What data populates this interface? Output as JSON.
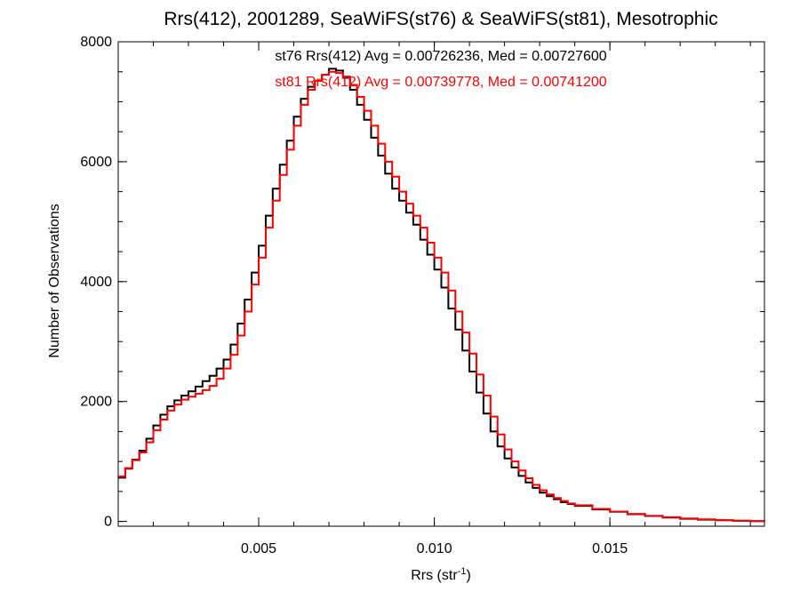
{
  "chart_data": {
    "type": "line",
    "title": "Rrs(412), 2001289, SeaWiFS(st76) & SeaWiFS(st81), Mesotrophic",
    "xlabel": {
      "main": "Rrs (str",
      "sup": "-1",
      "close": ")"
    },
    "ylabel": "Number of Observations",
    "xlim": [
      0.001,
      0.0194
    ],
    "ylim": [
      -80,
      8000
    ],
    "x_ticks": [
      {
        "value": 0.005,
        "label": "0.005"
      },
      {
        "value": 0.01,
        "label": "0.010"
      },
      {
        "value": 0.015,
        "label": "0.015"
      }
    ],
    "x_minor_step": 0.001,
    "y_ticks": [
      {
        "value": 0,
        "label": "0"
      },
      {
        "value": 2000,
        "label": "2000"
      },
      {
        "value": 4000,
        "label": "4000"
      },
      {
        "value": 6000,
        "label": "6000"
      },
      {
        "value": 8000,
        "label": "8000"
      }
    ],
    "y_minor_step": 500,
    "grid": false,
    "step": "histogram",
    "annotations": [
      {
        "text": "st76 Rrs(412) Avg = 0.00726236, Med = 0.00727600",
        "color": "#000000"
      },
      {
        "text": "st81 Rrs(412) Avg = 0.00739778, Med = 0.00741200",
        "color": "#ff0000"
      }
    ],
    "series": [
      {
        "name": "st76",
        "color": "#000000",
        "x": [
          0.001,
          0.0012,
          0.0014,
          0.0016,
          0.0018,
          0.002,
          0.0022,
          0.0024,
          0.0026,
          0.0028,
          0.003,
          0.0032,
          0.0034,
          0.0036,
          0.0038,
          0.004,
          0.0042,
          0.0044,
          0.0046,
          0.0048,
          0.005,
          0.0052,
          0.0054,
          0.0056,
          0.0058,
          0.006,
          0.0062,
          0.0064,
          0.0066,
          0.0068,
          0.007,
          0.0072,
          0.0074,
          0.0076,
          0.0078,
          0.008,
          0.0082,
          0.0084,
          0.0086,
          0.0088,
          0.009,
          0.0092,
          0.0094,
          0.0096,
          0.0098,
          0.01,
          0.0102,
          0.0104,
          0.0106,
          0.0108,
          0.011,
          0.0112,
          0.0114,
          0.0116,
          0.0118,
          0.012,
          0.0122,
          0.0124,
          0.0126,
          0.0128,
          0.013,
          0.0132,
          0.0134,
          0.0136,
          0.0138,
          0.014,
          0.0145,
          0.015,
          0.0155,
          0.016,
          0.0165,
          0.017,
          0.0175,
          0.018,
          0.0185,
          0.019,
          0.0194
        ],
        "y": [
          730,
          880,
          1030,
          1180,
          1380,
          1600,
          1780,
          1920,
          2020,
          2100,
          2170,
          2250,
          2340,
          2430,
          2550,
          2700,
          2950,
          3300,
          3700,
          4150,
          4600,
          5100,
          5550,
          5950,
          6350,
          6750,
          7050,
          7250,
          7350,
          7450,
          7550,
          7520,
          7400,
          7200,
          6950,
          6700,
          6400,
          6100,
          5800,
          5550,
          5350,
          5150,
          4950,
          4700,
          4450,
          4200,
          3900,
          3550,
          3200,
          2850,
          2500,
          2150,
          1800,
          1500,
          1250,
          1050,
          900,
          760,
          650,
          560,
          480,
          420,
          370,
          320,
          290,
          260,
          200,
          160,
          120,
          90,
          65,
          45,
          30,
          20,
          10,
          5,
          3
        ]
      },
      {
        "name": "st81",
        "color": "#ff0000",
        "x": [
          0.001,
          0.0012,
          0.0014,
          0.0016,
          0.0018,
          0.002,
          0.0022,
          0.0024,
          0.0026,
          0.0028,
          0.003,
          0.0032,
          0.0034,
          0.0036,
          0.0038,
          0.004,
          0.0042,
          0.0044,
          0.0046,
          0.0048,
          0.005,
          0.0052,
          0.0054,
          0.0056,
          0.0058,
          0.006,
          0.0062,
          0.0064,
          0.0066,
          0.0068,
          0.007,
          0.0072,
          0.0074,
          0.0076,
          0.0078,
          0.008,
          0.0082,
          0.0084,
          0.0086,
          0.0088,
          0.009,
          0.0092,
          0.0094,
          0.0096,
          0.0098,
          0.01,
          0.0102,
          0.0104,
          0.0106,
          0.0108,
          0.011,
          0.0112,
          0.0114,
          0.0116,
          0.0118,
          0.012,
          0.0122,
          0.0124,
          0.0126,
          0.0128,
          0.013,
          0.0132,
          0.0134,
          0.0136,
          0.0138,
          0.014,
          0.0145,
          0.015,
          0.0155,
          0.016,
          0.0165,
          0.017,
          0.0175,
          0.018,
          0.0185,
          0.019,
          0.0194
        ],
        "y": [
          750,
          890,
          1020,
          1150,
          1320,
          1520,
          1700,
          1850,
          1950,
          2030,
          2080,
          2130,
          2190,
          2260,
          2380,
          2550,
          2780,
          3100,
          3500,
          3950,
          4400,
          4900,
          5350,
          5780,
          6200,
          6600,
          6950,
          7200,
          7350,
          7450,
          7500,
          7480,
          7420,
          7280,
          7080,
          6850,
          6600,
          6300,
          6000,
          5750,
          5500,
          5300,
          5100,
          4900,
          4650,
          4400,
          4150,
          3850,
          3500,
          3150,
          2800,
          2450,
          2100,
          1750,
          1450,
          1200,
          1000,
          850,
          720,
          610,
          520,
          450,
          390,
          340,
          300,
          270,
          210,
          165,
          125,
          95,
          70,
          50,
          35,
          22,
          12,
          6,
          3
        ]
      }
    ]
  }
}
